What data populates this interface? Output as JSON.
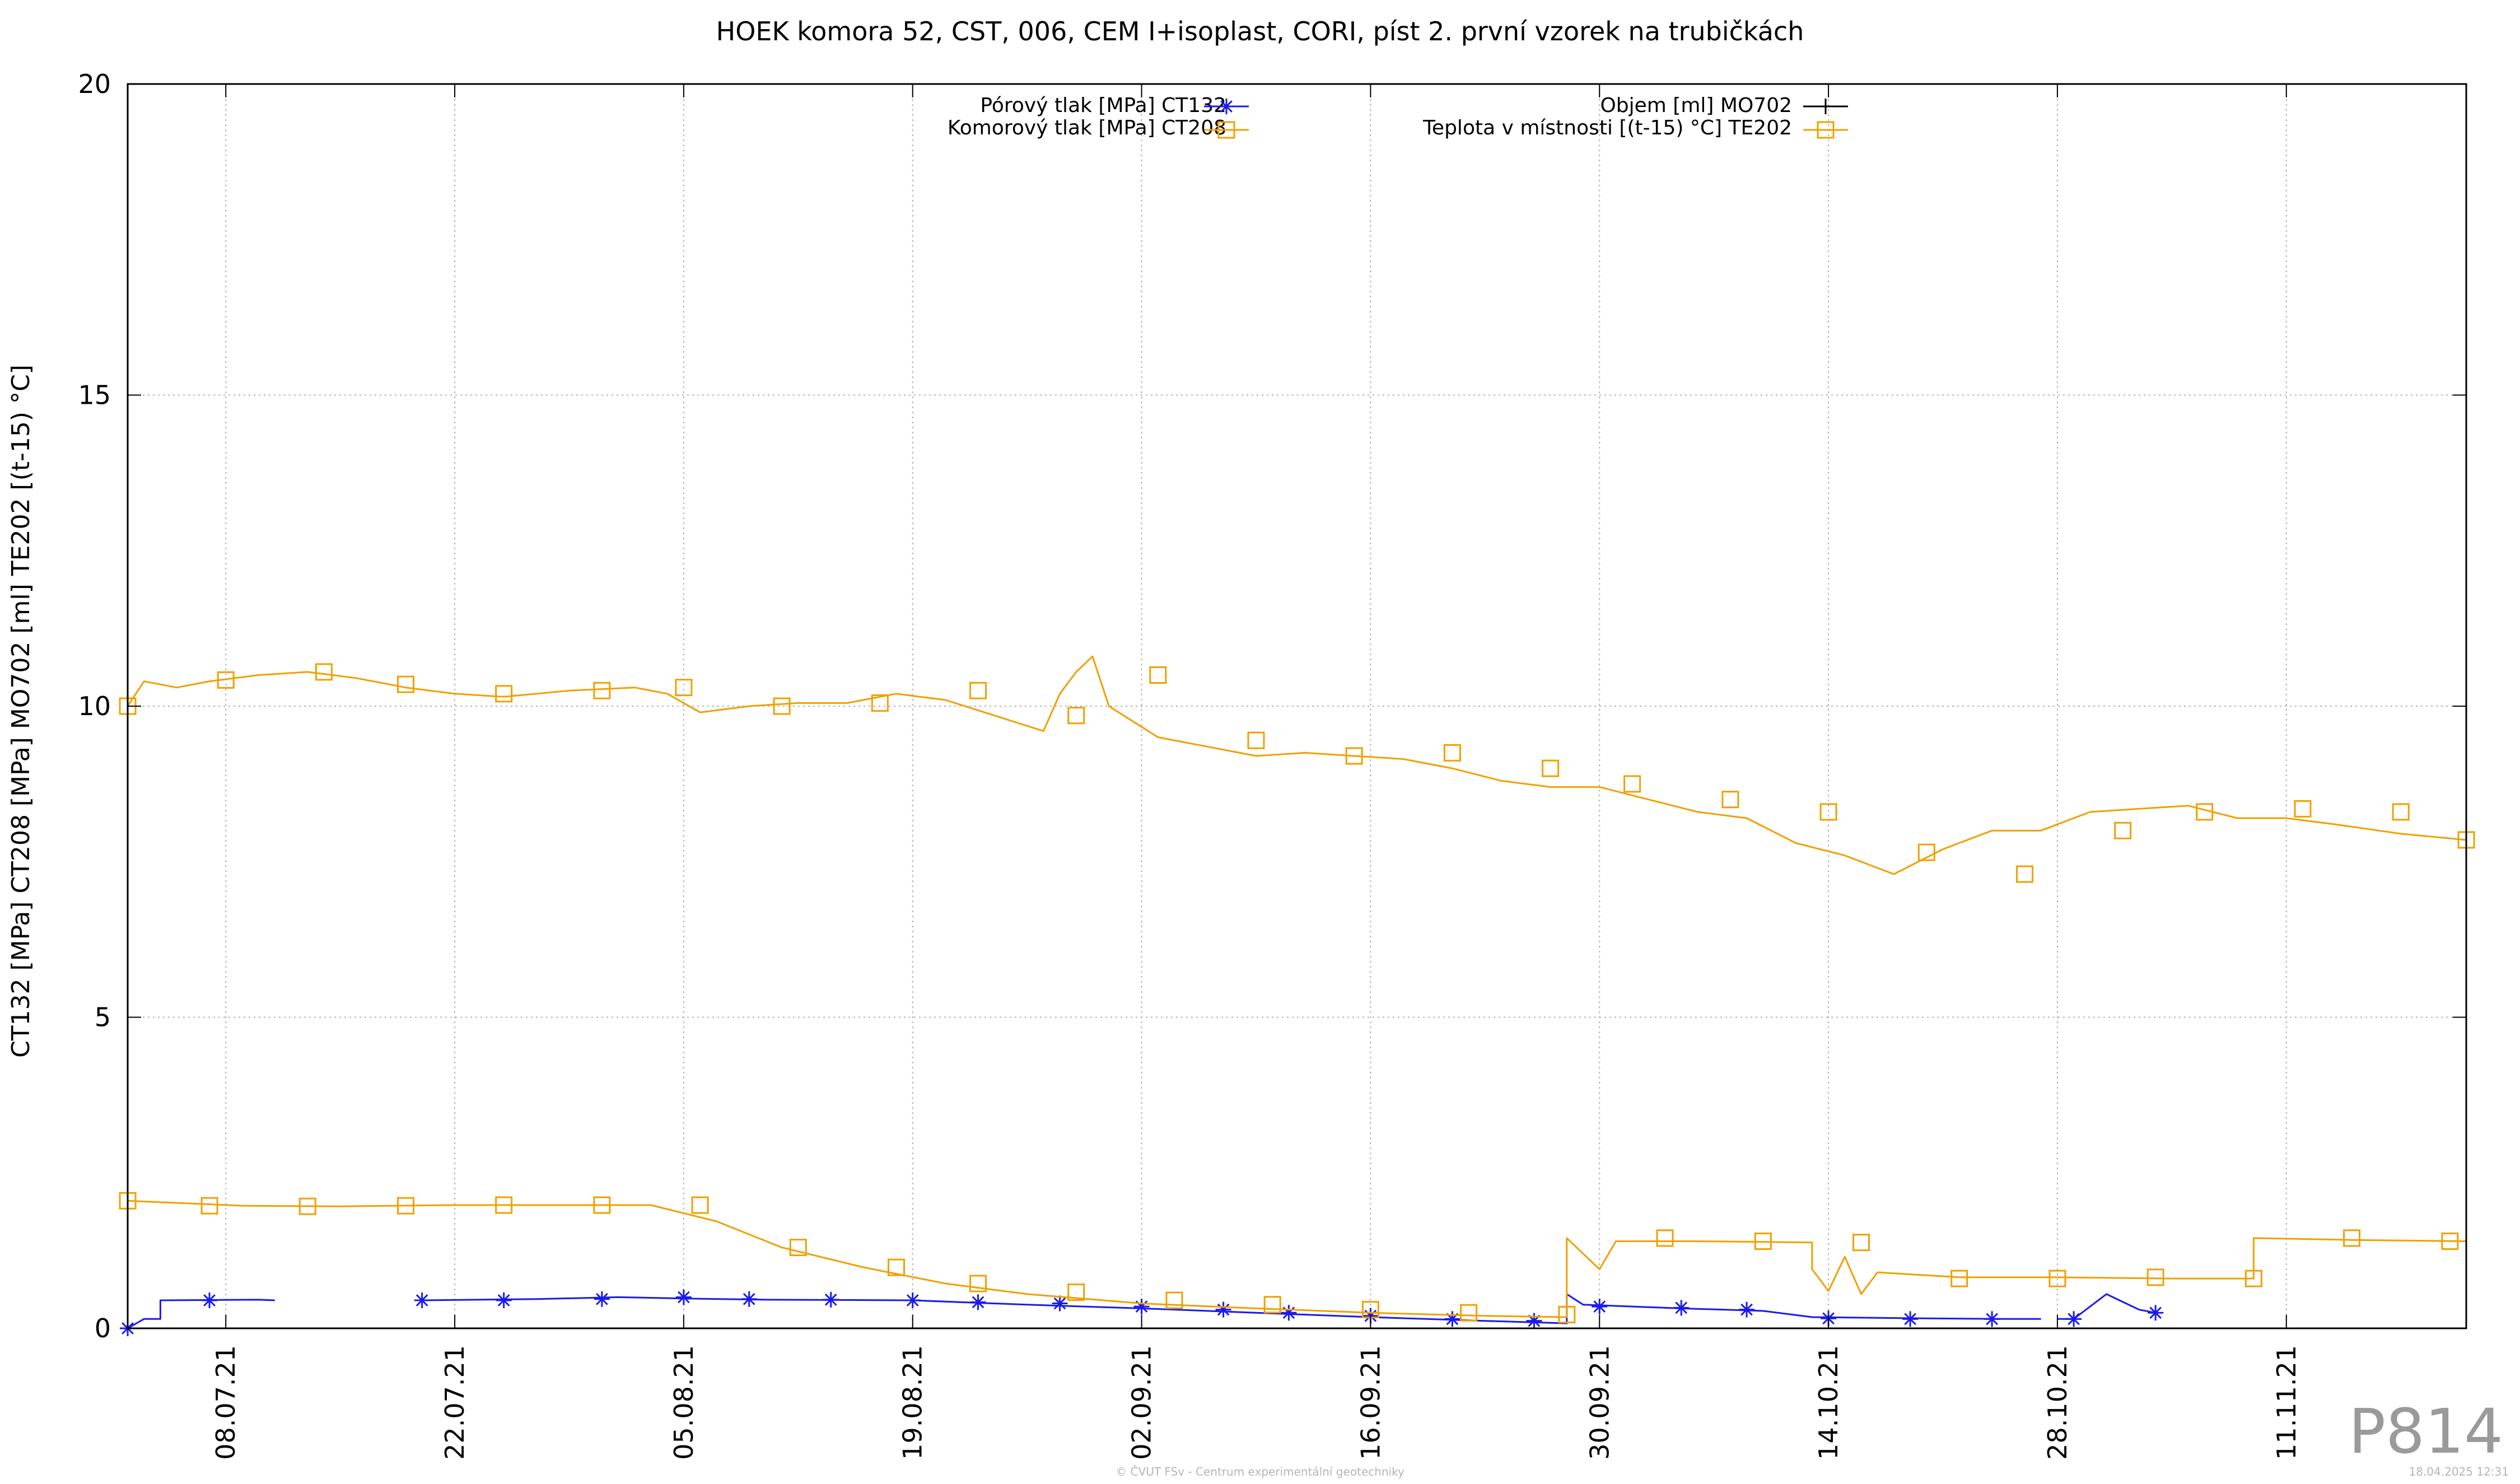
{
  "chart_data": {
    "type": "line",
    "title": "HOEK komora 52, CST, 006, CEM I+isoplast, CORI, píst 2. první vzorek na trubičkách",
    "ylabel": "CT132 [MPa] CT208 [MPa] MO702 [ml] TE202 [(t-15) °C]",
    "xlabel": "",
    "ylim": [
      0,
      20
    ],
    "yticks": [
      0,
      5,
      10,
      15,
      20
    ],
    "xlim": [
      "2021-07-02",
      "2021-11-22"
    ],
    "xticks": [
      "08.07.21",
      "22.07.21",
      "05.08.21",
      "19.08.21",
      "02.09.21",
      "16.09.21",
      "30.09.21",
      "14.10.21",
      "28.10.21",
      "11.11.21"
    ],
    "xtick_dates": [
      "2021-07-08",
      "2021-07-22",
      "2021-08-05",
      "2021-08-19",
      "2021-09-02",
      "2021-09-16",
      "2021-09-30",
      "2021-10-14",
      "2021-10-28",
      "2021-11-11"
    ],
    "grid": true,
    "legend_position": "top",
    "series": [
      {
        "name": "Pórový tlak [MPa] CT132",
        "color": "#1a1aee",
        "marker": "asterisk",
        "points": [
          [
            "2021-07-02",
            0.0
          ],
          [
            "2021-07-03",
            0.15
          ],
          [
            "2021-07-04",
            0.15
          ],
          [
            "2021-07-04",
            0.45
          ],
          [
            "2021-07-10",
            0.46
          ],
          [
            "2021-07-11",
            0.45
          ],
          null,
          [
            "2021-07-20",
            0.45
          ],
          [
            "2021-07-27",
            0.47
          ],
          [
            "2021-08-01",
            0.5
          ],
          [
            "2021-08-05",
            0.48
          ],
          [
            "2021-08-10",
            0.46
          ],
          [
            "2021-08-19",
            0.45
          ],
          [
            "2021-08-26",
            0.38
          ],
          [
            "2021-09-02",
            0.32
          ],
          [
            "2021-09-09",
            0.25
          ],
          [
            "2021-09-16",
            0.18
          ],
          [
            "2021-09-23",
            0.12
          ],
          [
            "2021-09-28",
            0.08
          ],
          [
            "2021-09-28",
            0.55
          ],
          [
            "2021-09-29",
            0.38
          ],
          [
            "2021-10-05",
            0.32
          ],
          [
            "2021-10-10",
            0.28
          ],
          [
            "2021-10-13",
            0.18
          ],
          [
            "2021-10-20",
            0.16
          ],
          [
            "2021-10-25",
            0.15
          ],
          [
            "2021-10-27",
            0.15
          ],
          null,
          [
            "2021-10-28",
            0.15
          ],
          [
            "2021-10-29",
            0.15
          ],
          [
            "2021-10-31",
            0.55
          ],
          [
            "2021-11-02",
            0.3
          ],
          [
            "2021-11-03",
            0.25
          ]
        ],
        "marker_points": [
          [
            "2021-07-02",
            0.0
          ],
          [
            "2021-07-07",
            0.45
          ],
          [
            "2021-07-20",
            0.45
          ],
          [
            "2021-07-25",
            0.45
          ],
          [
            "2021-07-31",
            0.47
          ],
          [
            "2021-08-05",
            0.5
          ],
          [
            "2021-08-09",
            0.47
          ],
          [
            "2021-08-14",
            0.46
          ],
          [
            "2021-08-19",
            0.45
          ],
          [
            "2021-08-23",
            0.42
          ],
          [
            "2021-08-28",
            0.4
          ],
          [
            "2021-09-02",
            0.35
          ],
          [
            "2021-09-07",
            0.3
          ],
          [
            "2021-09-11",
            0.25
          ],
          [
            "2021-09-16",
            0.2
          ],
          [
            "2021-09-21",
            0.15
          ],
          [
            "2021-09-26",
            0.12
          ],
          [
            "2021-09-30",
            0.35
          ],
          [
            "2021-10-05",
            0.33
          ],
          [
            "2021-10-09",
            0.3
          ],
          [
            "2021-10-14",
            0.16
          ],
          [
            "2021-10-19",
            0.15
          ],
          [
            "2021-10-24",
            0.15
          ],
          [
            "2021-10-29",
            0.15
          ],
          [
            "2021-11-03",
            0.25
          ]
        ]
      },
      {
        "name": "Komorový tlak [MPa] CT208",
        "color": "#f0a000",
        "marker": "square",
        "points": [
          [
            "2021-07-02",
            2.05
          ],
          [
            "2021-07-09",
            1.97
          ],
          [
            "2021-07-15",
            1.96
          ],
          [
            "2021-07-22",
            1.98
          ],
          [
            "2021-07-28",
            1.98
          ],
          [
            "2021-08-03",
            1.98
          ],
          [
            "2021-08-07",
            1.72
          ],
          [
            "2021-08-11",
            1.3
          ],
          [
            "2021-08-16",
            0.98
          ],
          [
            "2021-08-21",
            0.72
          ],
          [
            "2021-08-26",
            0.55
          ],
          [
            "2021-09-02",
            0.4
          ],
          [
            "2021-09-09",
            0.32
          ],
          [
            "2021-09-16",
            0.25
          ],
          [
            "2021-09-23",
            0.2
          ],
          [
            "2021-09-28",
            0.18
          ],
          [
            "2021-09-28",
            1.45
          ],
          [
            "2021-09-30",
            0.95
          ],
          [
            "2021-10-01",
            1.4
          ],
          [
            "2021-10-06",
            1.4
          ],
          [
            "2021-10-13",
            1.38
          ],
          [
            "2021-10-13",
            0.95
          ],
          [
            "2021-10-14",
            0.6
          ],
          [
            "2021-10-15",
            1.15
          ],
          [
            "2021-10-16",
            0.55
          ],
          [
            "2021-10-17",
            0.9
          ],
          [
            "2021-10-22",
            0.82
          ],
          [
            "2021-10-28",
            0.82
          ],
          [
            "2021-11-04",
            0.8
          ],
          [
            "2021-11-09",
            0.8
          ],
          [
            "2021-11-09",
            1.45
          ],
          [
            "2021-11-15",
            1.42
          ],
          [
            "2021-11-22",
            1.4
          ]
        ],
        "marker_points": [
          [
            "2021-07-02",
            2.05
          ],
          [
            "2021-07-07",
            1.97
          ],
          [
            "2021-07-13",
            1.96
          ],
          [
            "2021-07-19",
            1.97
          ],
          [
            "2021-07-25",
            1.98
          ],
          [
            "2021-07-31",
            1.98
          ],
          [
            "2021-08-06",
            1.98
          ],
          [
            "2021-08-12",
            1.3
          ],
          [
            "2021-08-18",
            0.98
          ],
          [
            "2021-08-23",
            0.72
          ],
          [
            "2021-08-29",
            0.58
          ],
          [
            "2021-09-04",
            0.45
          ],
          [
            "2021-09-10",
            0.38
          ],
          [
            "2021-09-16",
            0.3
          ],
          [
            "2021-09-22",
            0.25
          ],
          [
            "2021-09-28",
            0.22
          ],
          [
            "2021-10-04",
            1.45
          ],
          [
            "2021-10-10",
            1.4
          ],
          [
            "2021-10-16",
            1.38
          ],
          [
            "2021-10-22",
            0.8
          ],
          [
            "2021-10-28",
            0.8
          ],
          [
            "2021-11-03",
            0.82
          ],
          [
            "2021-11-09",
            0.8
          ],
          [
            "2021-11-15",
            1.45
          ],
          [
            "2021-11-21",
            1.4
          ]
        ]
      },
      {
        "name": "Objem [ml] MO702",
        "color": "#000000",
        "marker": "plus",
        "points": []
      },
      {
        "name": "Teplota v místnosti [(t-15) °C] TE202",
        "color": "#f0a000",
        "marker": "square",
        "points": [
          [
            "2021-07-02",
            10.0
          ],
          [
            "2021-07-03",
            10.4
          ],
          [
            "2021-07-05",
            10.3
          ],
          [
            "2021-07-07",
            10.4
          ],
          [
            "2021-07-10",
            10.5
          ],
          [
            "2021-07-13",
            10.55
          ],
          [
            "2021-07-16",
            10.45
          ],
          [
            "2021-07-19",
            10.3
          ],
          [
            "2021-07-22",
            10.2
          ],
          [
            "2021-07-25",
            10.15
          ],
          [
            "2021-07-29",
            10.25
          ],
          [
            "2021-08-02",
            10.3
          ],
          [
            "2021-08-04",
            10.2
          ],
          [
            "2021-08-06",
            9.9
          ],
          [
            "2021-08-09",
            10.0
          ],
          [
            "2021-08-12",
            10.05
          ],
          [
            "2021-08-15",
            10.05
          ],
          [
            "2021-08-18",
            10.2
          ],
          [
            "2021-08-21",
            10.1
          ],
          [
            "2021-08-24",
            9.85
          ],
          [
            "2021-08-27",
            9.6
          ],
          [
            "2021-08-28",
            10.2
          ],
          [
            "2021-08-29",
            10.55
          ],
          [
            "2021-08-30",
            10.8
          ],
          [
            "2021-08-31",
            10.0
          ],
          [
            "2021-09-03",
            9.5
          ],
          [
            "2021-09-06",
            9.35
          ],
          [
            "2021-09-09",
            9.2
          ],
          [
            "2021-09-12",
            9.25
          ],
          [
            "2021-09-15",
            9.2
          ],
          [
            "2021-09-18",
            9.15
          ],
          [
            "2021-09-21",
            9.0
          ],
          [
            "2021-09-24",
            8.8
          ],
          [
            "2021-09-27",
            8.7
          ],
          [
            "2021-09-30",
            8.7
          ],
          [
            "2021-10-03",
            8.5
          ],
          [
            "2021-10-06",
            8.3
          ],
          [
            "2021-10-09",
            8.2
          ],
          [
            "2021-10-12",
            7.8
          ],
          [
            "2021-10-15",
            7.6
          ],
          [
            "2021-10-18",
            7.3
          ],
          [
            "2021-10-21",
            7.7
          ],
          [
            "2021-10-24",
            8.0
          ],
          [
            "2021-10-27",
            8.0
          ],
          [
            "2021-10-30",
            8.3
          ],
          [
            "2021-11-02",
            8.35
          ],
          [
            "2021-11-05",
            8.4
          ],
          [
            "2021-11-08",
            8.2
          ],
          [
            "2021-11-11",
            8.2
          ],
          [
            "2021-11-14",
            8.1
          ],
          [
            "2021-11-18",
            7.95
          ],
          [
            "2021-11-22",
            7.85
          ]
        ],
        "marker_points": [
          [
            "2021-07-02",
            10.0
          ],
          [
            "2021-07-08",
            10.42
          ],
          [
            "2021-07-14",
            10.55
          ],
          [
            "2021-07-19",
            10.35
          ],
          [
            "2021-07-25",
            10.2
          ],
          [
            "2021-07-31",
            10.25
          ],
          [
            "2021-08-05",
            10.3
          ],
          [
            "2021-08-11",
            10.0
          ],
          [
            "2021-08-17",
            10.05
          ],
          [
            "2021-08-23",
            10.25
          ],
          [
            "2021-08-29",
            9.85
          ],
          [
            "2021-09-03",
            10.5
          ],
          [
            "2021-09-09",
            9.45
          ],
          [
            "2021-09-15",
            9.2
          ],
          [
            "2021-09-21",
            9.25
          ],
          [
            "2021-09-27",
            9.0
          ],
          [
            "2021-10-02",
            8.75
          ],
          [
            "2021-10-08",
            8.5
          ],
          [
            "2021-10-14",
            8.3
          ],
          [
            "2021-10-20",
            7.65
          ],
          [
            "2021-10-26",
            7.3
          ],
          [
            "2021-11-01",
            8.0
          ],
          [
            "2021-11-06",
            8.3
          ],
          [
            "2021-11-12",
            8.35
          ],
          [
            "2021-11-18",
            8.3
          ],
          [
            "2021-11-22",
            7.85
          ]
        ]
      }
    ]
  },
  "watermark": "P814",
  "footer": "© ČVUT FSv - Centrum experimentální geotechniky",
  "timestamp": "18.04.2025 12:31"
}
